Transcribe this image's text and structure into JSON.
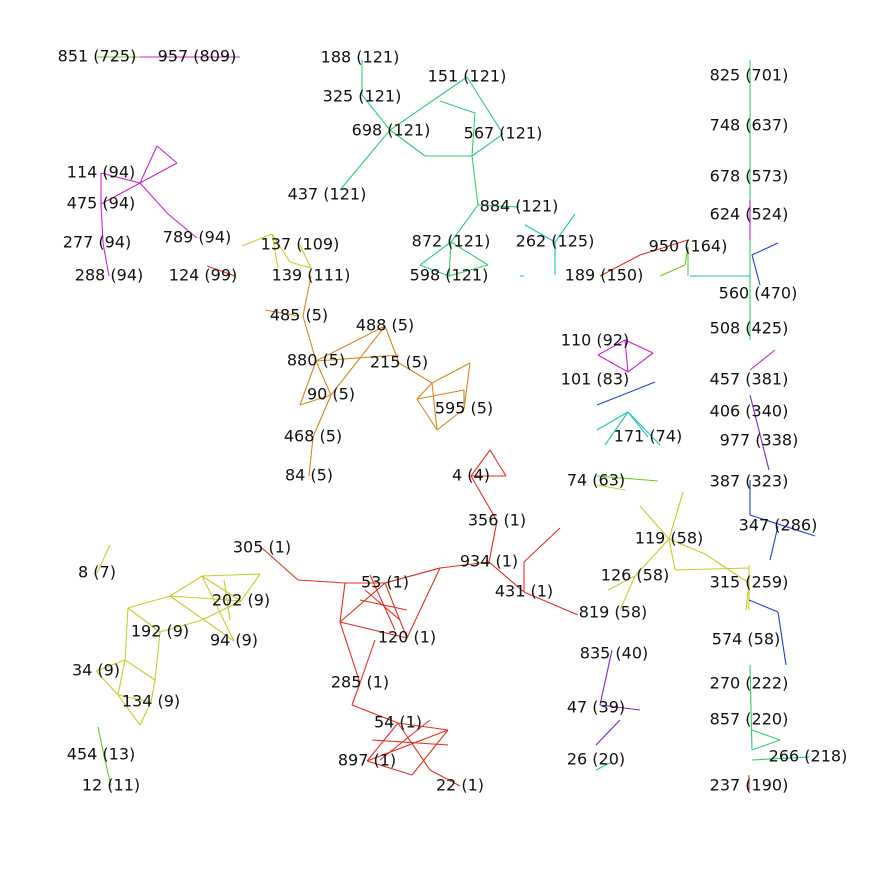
{
  "colors": {
    "green": "#2ecc71",
    "magenta": "#cc22cc",
    "orange": "#d4861e",
    "yellow": "#c8cc2a",
    "red": "#e03020",
    "teal": "#1fc4b8",
    "blue": "#2040d0",
    "purple": "#7a22d0",
    "lime": "#66cc22"
  },
  "nodes": [
    {
      "id": "851",
      "label": "851 (725)",
      "color": "lime"
    },
    {
      "id": "957",
      "label": "957 (809)",
      "color": "magenta"
    },
    {
      "id": "188",
      "label": "188 (121)",
      "color": "green"
    },
    {
      "id": "325",
      "label": "325 (121)",
      "color": "green"
    },
    {
      "id": "151",
      "label": "151 (121)",
      "color": "green"
    },
    {
      "id": "698",
      "label": "698 (121)",
      "color": "green"
    },
    {
      "id": "567",
      "label": "567 (121)",
      "color": "green"
    },
    {
      "id": "437",
      "label": "437 (121)",
      "color": "green"
    },
    {
      "id": "884",
      "label": "884 (121)",
      "color": "green"
    },
    {
      "id": "872",
      "label": "872 (121)",
      "color": "green"
    },
    {
      "id": "598",
      "label": "598 (121)",
      "color": "green"
    },
    {
      "id": "262",
      "label": "262 (125)",
      "color": "teal"
    },
    {
      "id": "189",
      "label": "189 (150)",
      "color": "red"
    },
    {
      "id": "950",
      "label": "950 (164)",
      "color": "lime"
    },
    {
      "id": "114",
      "label": "114 (94)",
      "color": "magenta"
    },
    {
      "id": "475",
      "label": "475 (94)",
      "color": "magenta"
    },
    {
      "id": "277",
      "label": "277 (94)",
      "color": "magenta"
    },
    {
      "id": "288",
      "label": "288 (94)",
      "color": "magenta"
    },
    {
      "id": "789",
      "label": "789 (94)",
      "color": "magenta"
    },
    {
      "id": "124",
      "label": "124 (99)",
      "color": "red"
    },
    {
      "id": "137",
      "label": "137 (109)",
      "color": "yellow"
    },
    {
      "id": "139",
      "label": "139 (111)",
      "color": "orange"
    },
    {
      "id": "485",
      "label": "485 (5)",
      "color": "orange"
    },
    {
      "id": "488",
      "label": "488 (5)",
      "color": "orange"
    },
    {
      "id": "880",
      "label": "880 (5)",
      "color": "orange"
    },
    {
      "id": "215",
      "label": "215 (5)",
      "color": "orange"
    },
    {
      "id": "90",
      "label": "90 (5)",
      "color": "orange"
    },
    {
      "id": "595",
      "label": "595 (5)",
      "color": "orange"
    },
    {
      "id": "468",
      "label": "468 (5)",
      "color": "orange"
    },
    {
      "id": "84",
      "label": "84 (5)",
      "color": "orange"
    },
    {
      "id": "4",
      "label": "4 (4)",
      "color": "red"
    },
    {
      "id": "356",
      "label": "356 (1)",
      "color": "red"
    },
    {
      "id": "934",
      "label": "934 (1)",
      "color": "red"
    },
    {
      "id": "431",
      "label": "431 (1)",
      "color": "red"
    },
    {
      "id": "305",
      "label": "305 (1)",
      "color": "red"
    },
    {
      "id": "53",
      "label": "53 (1)",
      "color": "red"
    },
    {
      "id": "120",
      "label": "120 (1)",
      "color": "red"
    },
    {
      "id": "285",
      "label": "285 (1)",
      "color": "red"
    },
    {
      "id": "54",
      "label": "54 (1)",
      "color": "red"
    },
    {
      "id": "897",
      "label": "897 (1)",
      "color": "red"
    },
    {
      "id": "22",
      "label": "22 (1)",
      "color": "red"
    },
    {
      "id": "8",
      "label": "8 (7)",
      "color": "yellow"
    },
    {
      "id": "202",
      "label": "202 (9)",
      "color": "yellow"
    },
    {
      "id": "192",
      "label": "192 (9)",
      "color": "yellow"
    },
    {
      "id": "94",
      "label": "94 (9)",
      "color": "yellow"
    },
    {
      "id": "34",
      "label": "34 (9)",
      "color": "yellow"
    },
    {
      "id": "134",
      "label": "134 (9)",
      "color": "yellow"
    },
    {
      "id": "454",
      "label": "454 (13)",
      "color": "lime"
    },
    {
      "id": "12",
      "label": "12 (11)",
      "color": "lime"
    },
    {
      "id": "110",
      "label": "110 (92)",
      "color": "magenta"
    },
    {
      "id": "101",
      "label": "101 (83)",
      "color": "blue"
    },
    {
      "id": "171",
      "label": "171 (74)",
      "color": "teal"
    },
    {
      "id": "74",
      "label": "74 (63)",
      "color": "lime"
    },
    {
      "id": "119",
      "label": "119 (58)",
      "color": "yellow"
    },
    {
      "id": "126",
      "label": "126 (58)",
      "color": "yellow"
    },
    {
      "id": "819",
      "label": "819 (58)",
      "color": "red"
    },
    {
      "id": "835",
      "label": "835 (40)",
      "color": "purple"
    },
    {
      "id": "47",
      "label": "47 (39)",
      "color": "purple"
    },
    {
      "id": "26",
      "label": "26 (20)",
      "color": "green"
    },
    {
      "id": "825",
      "label": "825 (701)",
      "color": "green"
    },
    {
      "id": "748",
      "label": "748 (637)",
      "color": "green"
    },
    {
      "id": "678",
      "label": "678 (573)",
      "color": "green"
    },
    {
      "id": "624",
      "label": "624 (524)",
      "color": "magenta"
    },
    {
      "id": "560",
      "label": "560 (470)",
      "color": "blue"
    },
    {
      "id": "508",
      "label": "508 (425)",
      "color": "magenta"
    },
    {
      "id": "457",
      "label": "457 (381)",
      "color": "magenta"
    },
    {
      "id": "406",
      "label": "406 (340)",
      "color": "purple"
    },
    {
      "id": "977",
      "label": "977 (338)",
      "color": "purple"
    },
    {
      "id": "387",
      "label": "387 (323)",
      "color": "blue"
    },
    {
      "id": "347",
      "label": "347 (286)",
      "color": "blue"
    },
    {
      "id": "315",
      "label": "315 (259)",
      "color": "yellow"
    },
    {
      "id": "574",
      "label": "574 (58)",
      "color": "yellow"
    },
    {
      "id": "270",
      "label": "270 (222)",
      "color": "green"
    },
    {
      "id": "857",
      "label": "857 (220)",
      "color": "green"
    },
    {
      "id": "266",
      "label": "266 (218)",
      "color": "green"
    },
    {
      "id": "237",
      "label": "237 (190)",
      "color": "red"
    }
  ]
}
